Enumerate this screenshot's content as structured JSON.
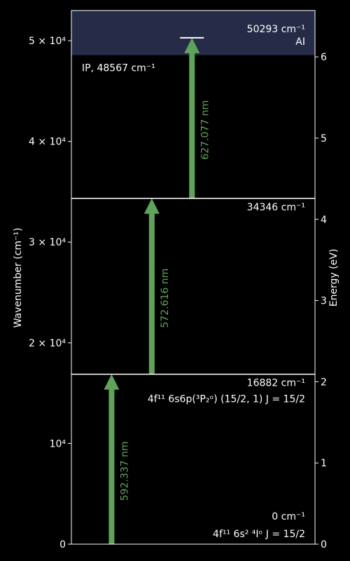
{
  "chart_data": {
    "type": "energy-level-diagram",
    "title": "",
    "ylabel_left": "Wavenumber (cm⁻¹)",
    "ylabel_right": "Energy (eV)",
    "ylim_left_cm": [
      0,
      53000
    ],
    "ylim_right_eV": [
      0,
      6.571
    ],
    "left_ticks": [
      {
        "value": 0,
        "label": "0"
      },
      {
        "value": 10000,
        "label": "10⁴"
      },
      {
        "value": 20000,
        "label": "2 × 10⁴"
      },
      {
        "value": 30000,
        "label": "3 × 10⁴"
      },
      {
        "value": 40000,
        "label": "4 × 10⁴"
      },
      {
        "value": 50000,
        "label": "5 × 10⁴"
      }
    ],
    "right_ticks": [
      {
        "value": 0,
        "label": "0"
      },
      {
        "value": 1,
        "label": "1"
      },
      {
        "value": 2,
        "label": "2"
      },
      {
        "value": 3,
        "label": "3"
      },
      {
        "value": 4,
        "label": "4"
      },
      {
        "value": 5,
        "label": "5"
      },
      {
        "value": 6,
        "label": "6"
      }
    ],
    "levels": [
      {
        "energy": 0,
        "value_label": "0 cm⁻¹",
        "config_label": "4f¹¹ 6s² ⁴Iᵒ J = 15/2"
      },
      {
        "energy": 16882,
        "value_label": "16882 cm⁻¹",
        "config_label": "4f¹¹ 6s6p(³P₂ᵒ) (15/2, 1) J = 15/2"
      },
      {
        "energy": 34346,
        "value_label": "34346 cm⁻¹",
        "config_label": ""
      },
      {
        "energy": 50293,
        "value_label": "50293 cm⁻¹",
        "config_label": "AI"
      }
    ],
    "ionization": {
      "energy": 48567,
      "label": "IP, 48567 cm⁻¹"
    },
    "transitions": [
      {
        "from": 0,
        "to": 16882,
        "label": "592.337 nm",
        "xfrac": 0.165
      },
      {
        "from": 16882,
        "to": 34346,
        "label": "572.616 nm",
        "xfrac": 0.33
      },
      {
        "from": 34346,
        "to": 50293,
        "label": "627.077 nm",
        "xfrac": 0.495
      }
    ],
    "colors": {
      "background": "#000000",
      "frame": "#ffffff",
      "arrow": "#5fa35a",
      "ionization_band": "#262c47"
    }
  }
}
